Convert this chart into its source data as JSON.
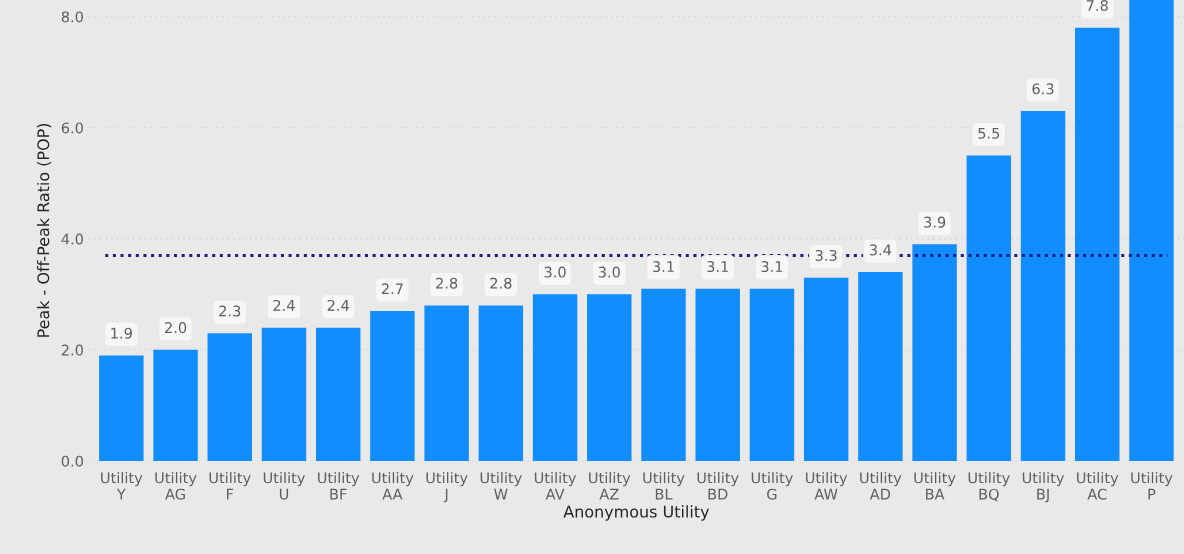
{
  "chart_data": {
    "type": "bar",
    "xlabel": "Anonymous Utility",
    "ylabel": "Peak - Off-Peak Ratio (POP)",
    "categories": [
      "Utility\nY",
      "Utility\nAG",
      "Utility\nF",
      "Utility\nU",
      "Utility\nBF",
      "Utility\nAA",
      "Utility\nJ",
      "Utility\nW",
      "Utility\nAV",
      "Utility\nAZ",
      "Utility\nBL",
      "Utility\nBD",
      "Utility\nG",
      "Utility\nAW",
      "Utility\nAD",
      "Utility\nBA",
      "Utility\nBQ",
      "Utility\nBJ",
      "Utility\nAC",
      "Utility\nP"
    ],
    "values": [
      1.9,
      2.0,
      2.3,
      2.4,
      2.4,
      2.7,
      2.8,
      2.8,
      3.0,
      3.0,
      3.1,
      3.1,
      3.1,
      3.3,
      3.4,
      3.9,
      5.5,
      6.3,
      7.8,
      8.3
    ],
    "value_labels": [
      "1.9",
      "2.0",
      "2.3",
      "2.4",
      "2.4",
      "2.7",
      "2.8",
      "2.8",
      "3.0",
      "3.0",
      "3.1",
      "3.1",
      "3.1",
      "3.3",
      "3.4",
      "3.9",
      "5.5",
      "6.3",
      "7.8",
      null
    ],
    "color": "#118dff",
    "ylim": [
      0,
      8.3
    ],
    "yticks": [
      {
        "value": 0,
        "label": "0.0"
      },
      {
        "value": 2,
        "label": "2.0"
      },
      {
        "value": 4,
        "label": "4.0"
      },
      {
        "value": 6,
        "label": "6.0"
      },
      {
        "value": 8,
        "label": "8.0"
      }
    ],
    "grid": "y",
    "ref_lines": [
      {
        "axis": "y",
        "value": 3.7,
        "label": null,
        "color": "#1c1c8a",
        "line_style": "dotted"
      }
    ]
  }
}
